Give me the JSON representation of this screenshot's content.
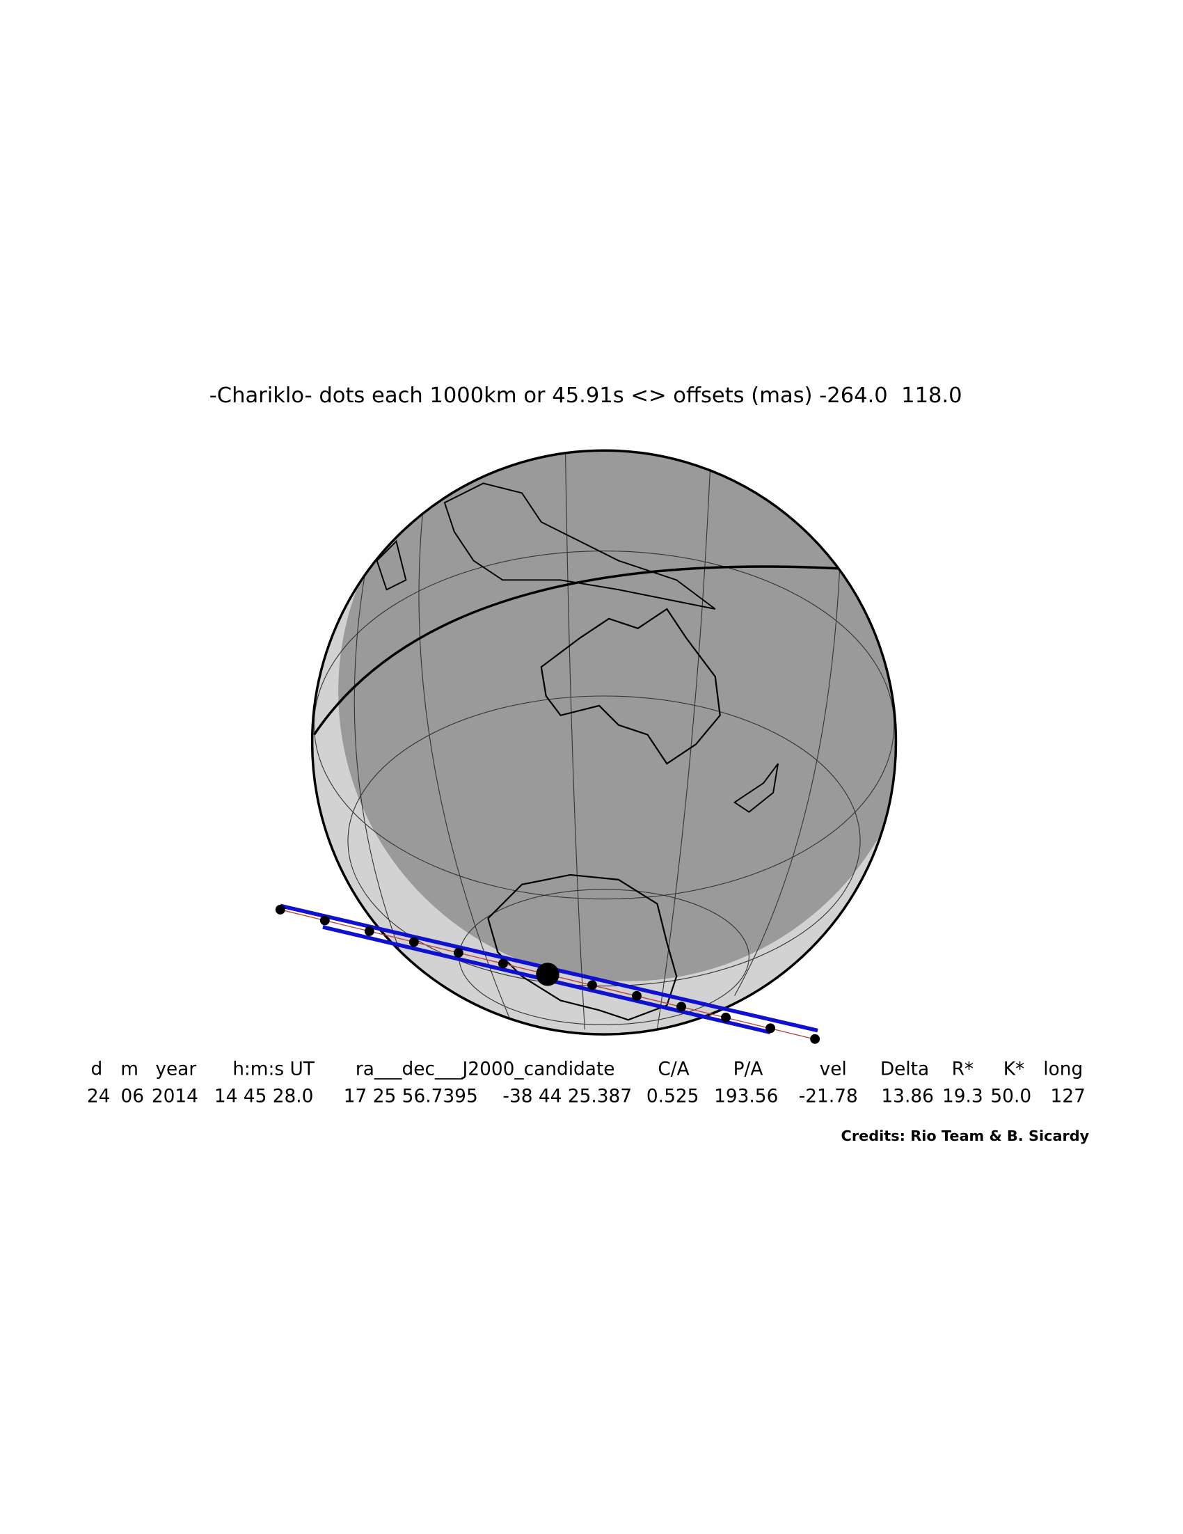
{
  "title": "-Chariklo- dots each 1000km or 45.91s <> offsets (mas) -264.0  118.0",
  "table": {
    "headers": [
      "d",
      "m",
      "year",
      "h:m:s UT",
      "ra___dec___J2000_candidate",
      "C/A",
      "P/A",
      "vel",
      "Delta",
      "R*",
      "K*",
      "long"
    ],
    "values": [
      "24",
      "06",
      "2014",
      "14 45 28.0",
      "17 25 56.7395",
      "-38 44 25.387",
      "0.525",
      "193.56",
      "-21.78",
      "13.86",
      "19.3",
      "50.0",
      "127"
    ]
  },
  "credits": "Credits: Rio Team & B. Sicardy"
}
